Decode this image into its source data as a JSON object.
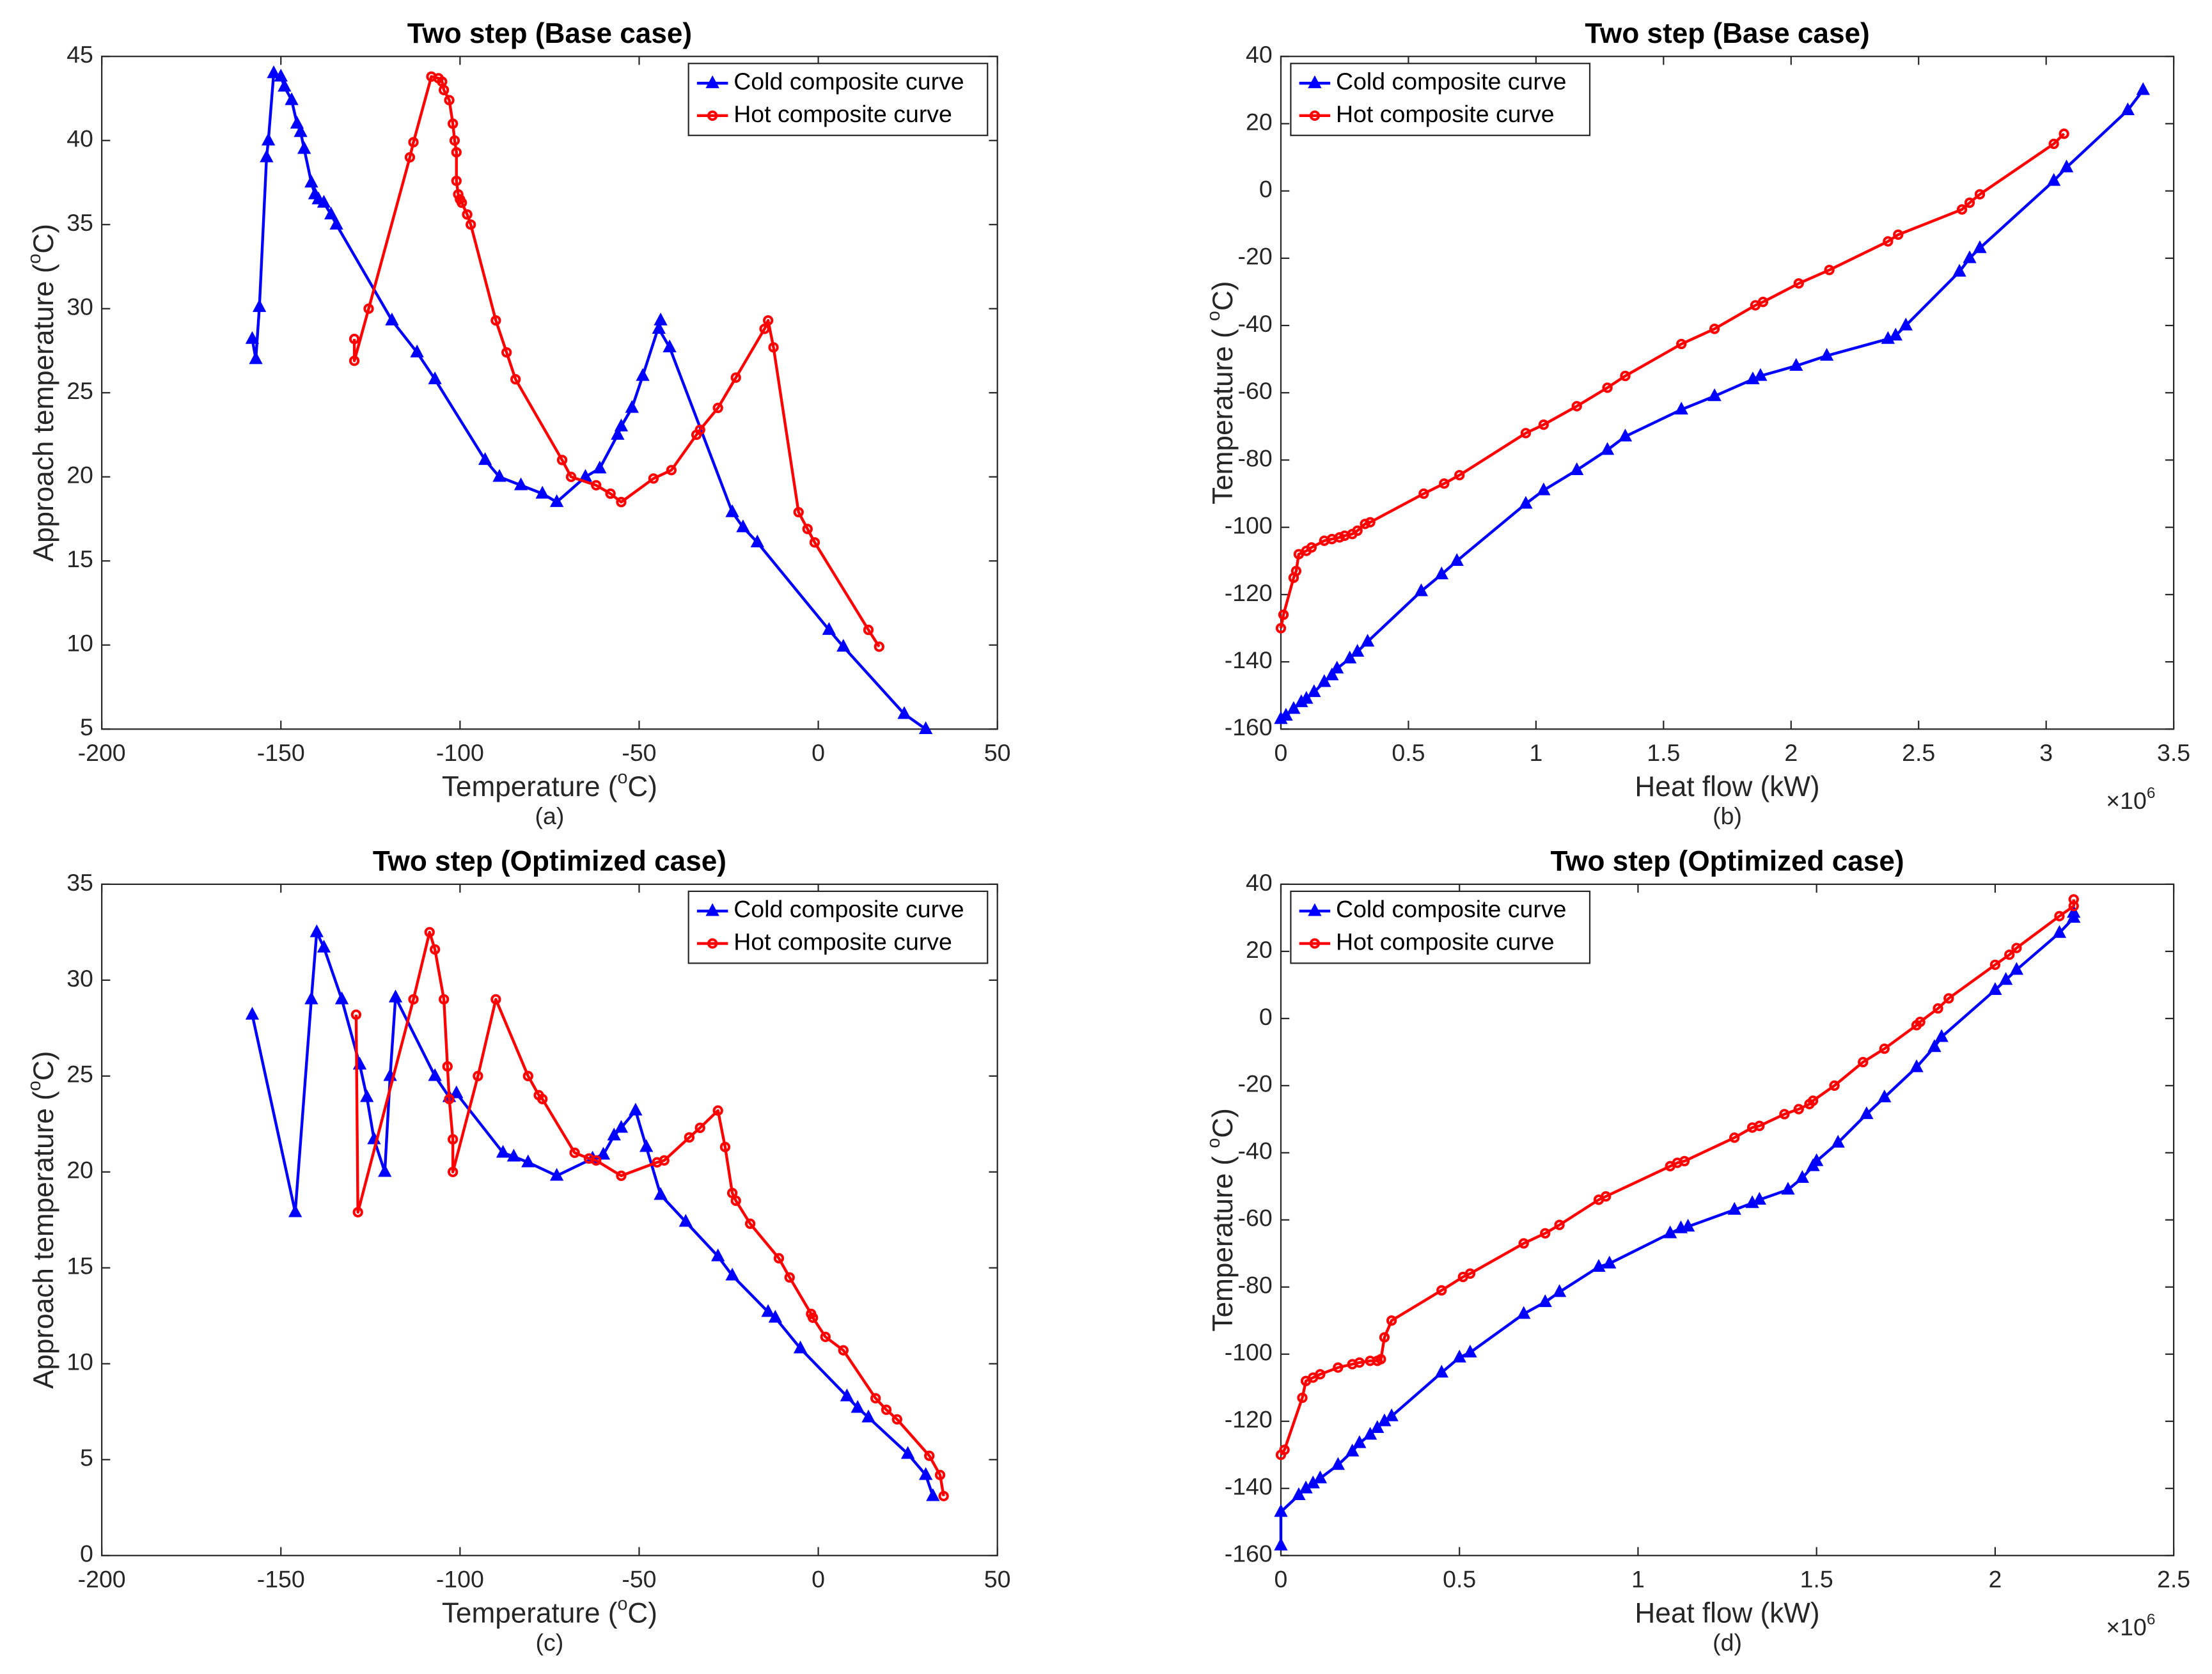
{
  "chart_data": [
    {
      "type": "line",
      "title": "Two step (Base case)",
      "xlabel": [
        "Temperature (",
        "o",
        "C)"
      ],
      "ylabel": [
        "Approach temperature (",
        "o",
        "C)"
      ],
      "caption": "(a)",
      "xlim": [
        -200,
        50
      ],
      "ylim": [
        5,
        45
      ],
      "xticks": [
        -200,
        -150,
        -100,
        -50,
        0,
        50
      ],
      "yticks": [
        5,
        10,
        15,
        20,
        25,
        30,
        35,
        40,
        45
      ],
      "legend": "upper right",
      "series": [
        {
          "name": "Cold composite curve",
          "color": "#0000ff",
          "marker": "triangle",
          "x": [
            -158,
            -157,
            -156,
            -154,
            -153.5,
            -152,
            -150,
            -149,
            -147,
            -145.5,
            -144.5,
            -143.5,
            -141.5,
            -140.5,
            -139.5,
            -138,
            -136,
            -134.5,
            -119,
            -112,
            -107,
            -93,
            -89,
            -83,
            -77,
            -73,
            -65,
            -61,
            -56,
            -55,
            -52,
            -49,
            -44,
            -44.5,
            -41.5,
            -24,
            -21,
            -17,
            3,
            7,
            24,
            30
          ],
          "values": [
            28.2,
            27,
            30.1,
            39,
            40,
            44,
            43.8,
            43.2,
            42.4,
            41,
            40.5,
            39.5,
            37.5,
            36.8,
            36.5,
            36.3,
            35.6,
            35,
            29.3,
            27.4,
            25.8,
            21,
            20,
            19.5,
            19,
            18.5,
            20,
            20.5,
            22.5,
            23,
            24.1,
            26,
            29.3,
            28.8,
            27.7,
            17.9,
            17,
            16.1,
            10.9,
            9.9,
            5.9,
            5
          ]
        },
        {
          "name": "Hot composite curve",
          "color": "#ff0000",
          "marker": "circle",
          "x": [
            -129.5,
            -129.5,
            -125.5,
            -114,
            -113,
            -108,
            -106,
            -105,
            -104.5,
            -103,
            -102,
            -101.5,
            -101,
            -101,
            -100.5,
            -100,
            -99.5,
            -98,
            -97,
            -90,
            -87,
            -84.5,
            -71.5,
            -69,
            -62,
            -58,
            -55,
            -46,
            -41,
            -34,
            -33,
            -28,
            -23,
            -15,
            -14,
            -12.5,
            -5.5,
            -3,
            -1,
            14,
            17
          ],
          "values": [
            28.2,
            26.9,
            30,
            39,
            39.9,
            43.8,
            43.7,
            43.5,
            43,
            42.4,
            41,
            40,
            39.3,
            37.6,
            36.8,
            36.5,
            36.3,
            35.6,
            35,
            29.3,
            27.4,
            25.8,
            21,
            20,
            19.5,
            19,
            18.5,
            19.9,
            20.4,
            22.5,
            22.8,
            24.1,
            25.9,
            28.8,
            29.3,
            27.7,
            17.9,
            16.9,
            16.1,
            10.9,
            9.9
          ]
        }
      ]
    },
    {
      "type": "line",
      "title": "Two step (Base case)",
      "xlabel": [
        "Heat flow (kW)"
      ],
      "ylabel": [
        "Temperature ( ",
        "o",
        "C)"
      ],
      "caption": "(b)",
      "x_multiplier": [
        "×10",
        "6"
      ],
      "xlim": [
        0,
        3.5
      ],
      "ylim": [
        -160,
        40
      ],
      "xticks": [
        0,
        0.5,
        1,
        1.5,
        2,
        2.5,
        3,
        3.5
      ],
      "yticks": [
        -160,
        -140,
        -120,
        -100,
        -80,
        -60,
        -40,
        -20,
        0,
        20,
        40
      ],
      "legend": "upper left",
      "series": [
        {
          "name": "Cold composite curve",
          "color": "#0000ff",
          "marker": "triangle",
          "x": [
            0,
            0.02,
            0.05,
            0.08,
            0.1,
            0.13,
            0.17,
            0.2,
            0.22,
            0.27,
            0.3,
            0.34,
            0.55,
            0.63,
            0.69,
            0.96,
            1.03,
            1.16,
            1.28,
            1.35,
            1.57,
            1.7,
            1.85,
            1.88,
            2.02,
            2.14,
            2.38,
            2.41,
            2.45,
            2.66,
            2.7,
            2.74,
            3.03,
            3.08,
            3.32,
            3.38
          ],
          "values": [
            -157,
            -156,
            -154,
            -152,
            -151,
            -149,
            -146,
            -144,
            -142,
            -139,
            -137,
            -134,
            -119,
            -114,
            -110,
            -93,
            -89,
            -83,
            -77,
            -73,
            -65,
            -61,
            -56,
            -55,
            -52,
            -49,
            -44,
            -43,
            -40,
            -24,
            -20,
            -17,
            3,
            7,
            24,
            30
          ]
        },
        {
          "name": "Hot composite curve",
          "color": "#ff0000",
          "marker": "circle",
          "x": [
            0,
            0.01,
            0.05,
            0.06,
            0.07,
            0.1,
            0.12,
            0.17,
            0.2,
            0.23,
            0.25,
            0.28,
            0.3,
            0.33,
            0.35,
            0.56,
            0.64,
            0.7,
            0.96,
            1.03,
            1.16,
            1.28,
            1.35,
            1.57,
            1.7,
            1.86,
            1.89,
            2.03,
            2.15,
            2.38,
            2.42,
            2.67,
            2.7,
            2.74,
            3.03,
            3.07
          ],
          "values": [
            -130,
            -126,
            -115,
            -113,
            -108,
            -107,
            -106,
            -104,
            -103.5,
            -103,
            -102.5,
            -102,
            -101,
            -99,
            -98.5,
            -90,
            -87,
            -84.5,
            -72,
            -69.5,
            -64,
            -58.5,
            -55,
            -45.5,
            -41,
            -34,
            -33,
            -27.5,
            -23.5,
            -15,
            -13,
            -5.5,
            -3.5,
            -1,
            14,
            17
          ]
        }
      ]
    },
    {
      "type": "line",
      "title": "Two step (Optimized case)",
      "xlabel": [
        "Temperature (",
        "o",
        "C)"
      ],
      "ylabel": [
        "Approach temperature (",
        "o",
        "C)"
      ],
      "caption": "(c)",
      "xlim": [
        -200,
        50
      ],
      "ylim": [
        0,
        35
      ],
      "xticks": [
        -200,
        -150,
        -100,
        -50,
        0,
        50
      ],
      "yticks": [
        0,
        5,
        10,
        15,
        20,
        25,
        30,
        35
      ],
      "legend": "upper right",
      "series": [
        {
          "name": "Cold composite curve",
          "color": "#0000ff",
          "marker": "triangle",
          "x": [
            -158,
            -146,
            -141.5,
            -140,
            -138,
            -133,
            -128,
            -126,
            -124,
            -121,
            -119.5,
            -118,
            -107,
            -103,
            -101,
            -88,
            -85,
            -81,
            -73,
            -63,
            -60,
            -57,
            -55,
            -51,
            -48,
            -44,
            -37,
            -28,
            -24,
            -14,
            -12,
            -5,
            8,
            11,
            14,
            25,
            30,
            32
          ],
          "values": [
            28.2,
            17.9,
            29,
            32.5,
            31.7,
            29,
            25.6,
            23.9,
            21.7,
            20,
            25,
            29.1,
            25,
            23.9,
            24.1,
            21,
            20.8,
            20.5,
            19.8,
            20.7,
            20.9,
            21.9,
            22.3,
            23.2,
            21.3,
            18.8,
            17.4,
            15.6,
            14.6,
            12.7,
            12.4,
            10.8,
            8.3,
            7.7,
            7.2,
            5.3,
            4.2,
            3.1
          ]
        },
        {
          "name": "Hot composite curve",
          "color": "#ff0000",
          "marker": "circle",
          "x": [
            -129,
            -128.5,
            -113,
            -108.5,
            -107,
            -104.5,
            -103.5,
            -103,
            -102,
            -102,
            -95,
            -90,
            -81,
            -78,
            -77,
            -68,
            -64,
            -62,
            -55,
            -45,
            -43,
            -36,
            -33,
            -28,
            -26,
            -24,
            -23,
            -19,
            -11,
            -8,
            -2,
            -1.5,
            2,
            7,
            16,
            19,
            22,
            31,
            34,
            35
          ],
          "values": [
            28.2,
            17.9,
            29,
            32.5,
            31.6,
            29,
            25.5,
            23.8,
            21.7,
            20,
            25,
            29,
            25,
            24,
            23.8,
            21,
            20.7,
            20.6,
            19.8,
            20.5,
            20.6,
            21.8,
            22.3,
            23.2,
            21.3,
            18.9,
            18.5,
            17.3,
            15.5,
            14.5,
            12.6,
            12.4,
            11.4,
            10.7,
            8.2,
            7.6,
            7.1,
            5.2,
            4.2,
            3.1
          ]
        }
      ]
    },
    {
      "type": "line",
      "title": "Two step (Optimized case)",
      "xlabel": [
        "Heat flow (kW)"
      ],
      "ylabel": [
        "Temperature ( ",
        "o",
        "C)"
      ],
      "caption": "(d)",
      "x_multiplier": [
        "×10",
        "6"
      ],
      "xlim": [
        0,
        2.5
      ],
      "ylim": [
        -160,
        40
      ],
      "xticks": [
        0,
        0.5,
        1,
        1.5,
        2,
        2.5
      ],
      "yticks": [
        -160,
        -140,
        -120,
        -100,
        -80,
        -60,
        -40,
        -20,
        0,
        20,
        40
      ],
      "legend": "upper left",
      "series": [
        {
          "name": "Cold composite curve",
          "color": "#0000ff",
          "marker": "triangle",
          "x": [
            0,
            0,
            0.05,
            0.07,
            0.09,
            0.11,
            0.16,
            0.2,
            0.22,
            0.25,
            0.27,
            0.29,
            0.31,
            0.45,
            0.5,
            0.53,
            0.68,
            0.74,
            0.78,
            0.89,
            0.92,
            1.09,
            1.12,
            1.14,
            1.27,
            1.32,
            1.34,
            1.42,
            1.46,
            1.49,
            1.5,
            1.56,
            1.64,
            1.69,
            1.78,
            1.83,
            1.85,
            2.0,
            2.03,
            2.06,
            2.18,
            2.22,
            2.22
          ],
          "values": [
            -157,
            -147,
            -142,
            -140,
            -138.5,
            -137,
            -133,
            -129,
            -126.5,
            -124,
            -122,
            -120,
            -118.5,
            -105.5,
            -101,
            -99.5,
            -88,
            -84.5,
            -81.5,
            -74,
            -73,
            -64,
            -62.5,
            -62,
            -57,
            -55,
            -54,
            -51,
            -47.5,
            -44,
            -42.5,
            -37,
            -28.5,
            -23.5,
            -14.5,
            -8.5,
            -5.5,
            8.5,
            11.5,
            14.5,
            25.5,
            30,
            31.5
          ]
        },
        {
          "name": "Hot composite curve",
          "color": "#ff0000",
          "marker": "circle",
          "x": [
            0,
            0.01,
            0.06,
            0.07,
            0.09,
            0.11,
            0.16,
            0.2,
            0.22,
            0.25,
            0.27,
            0.28,
            0.29,
            0.31,
            0.45,
            0.51,
            0.53,
            0.68,
            0.74,
            0.78,
            0.89,
            0.91,
            1.09,
            1.11,
            1.13,
            1.27,
            1.32,
            1.34,
            1.41,
            1.45,
            1.48,
            1.49,
            1.55,
            1.63,
            1.69,
            1.78,
            1.79,
            1.84,
            1.87,
            2.0,
            2.04,
            2.06,
            2.18,
            2.22,
            2.22
          ],
          "values": [
            -130,
            -128.5,
            -113,
            -108,
            -107,
            -106,
            -104,
            -103,
            -102.5,
            -102,
            -102,
            -101.5,
            -95,
            -90,
            -81,
            -77,
            -76,
            -67,
            -64,
            -61.5,
            -54,
            -53,
            -44,
            -43,
            -42.5,
            -35.5,
            -32.5,
            -32,
            -28.5,
            -27,
            -25.5,
            -24.5,
            -20,
            -13,
            -9,
            -2,
            -1,
            3,
            6,
            16,
            19,
            21,
            30.5,
            33.5,
            35.5
          ]
        }
      ]
    }
  ]
}
